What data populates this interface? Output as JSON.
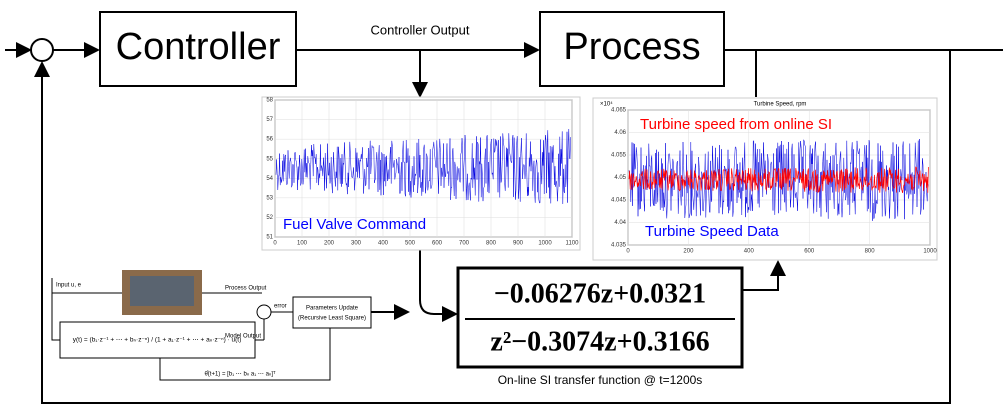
{
  "top_loop": {
    "controller": "Controller",
    "process": "Process",
    "controller_output": "Controller Output"
  },
  "fuel_plot": {
    "label": "Fuel Valve Command",
    "yticks": [
      "58",
      "57",
      "56",
      "55",
      "54",
      "53",
      "52",
      "51"
    ],
    "xticks": [
      "0",
      "100",
      "200",
      "300",
      "400",
      "500",
      "600",
      "700",
      "800",
      "900",
      "1000",
      "1100"
    ]
  },
  "speed_plot": {
    "title": "Turbine Speed, rpm",
    "exponent": "×10⁴",
    "online_label": "Turbine speed from online SI",
    "data_label": "Turbine Speed Data",
    "yticks": [
      "4.065",
      "4.06",
      "4.055",
      "4.05",
      "4.045",
      "4.04",
      "4.035"
    ],
    "xticks": [
      "0",
      "200",
      "400",
      "600",
      "800",
      "1000"
    ]
  },
  "transfer_function": {
    "numerator": "−0.06276z+0.0321",
    "denominator": "z²−0.3074z+0.3166",
    "caption": "On-line SI transfer function @ t=1200s"
  },
  "rls_diagram": {
    "input": "Input u, e",
    "process_output": "Process Output",
    "model_output": "Model Output",
    "error": "error",
    "update_title": "Parameters Update",
    "update_method": "(Recursive Least Square)",
    "model_equation": "y(t) = (b₁·z⁻¹ + ⋯ + bₙ·z⁻ⁿ) / (1 + a₁·z⁻¹ + ⋯ + aₙ·z⁻ⁿ) · u(t)",
    "parameter_vector": "θ̂(t+1) = [b₁ ⋯ bₙ  a₁ ⋯ aₙ]ᵀ"
  }
}
